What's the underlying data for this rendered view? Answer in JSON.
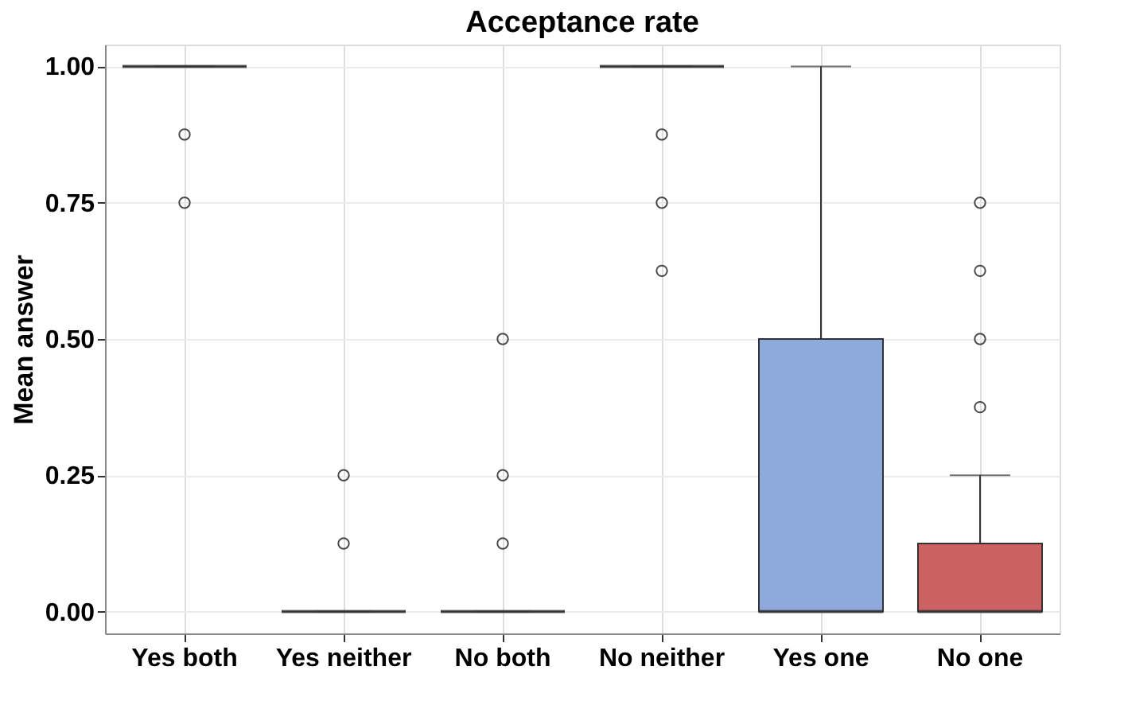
{
  "chart_data": {
    "type": "box",
    "title": "Acceptance rate",
    "ylabel": "Mean answer",
    "categories": [
      "Yes both",
      "Yes neither",
      "No both",
      "No neither",
      "Yes one",
      "No one"
    ],
    "boxes": [
      {
        "low": 1,
        "q1": 1,
        "median": 1,
        "q3": 1,
        "high": 1,
        "outliers": [
          0.875,
          0.75
        ]
      },
      {
        "low": 0,
        "q1": 0,
        "median": 0,
        "q3": 0,
        "high": 0,
        "outliers": [
          0.25,
          0.125
        ]
      },
      {
        "low": 0,
        "q1": 0,
        "median": 0,
        "q3": 0,
        "high": 0,
        "outliers": [
          0.5,
          0.25,
          0.125
        ]
      },
      {
        "low": 1,
        "q1": 1,
        "median": 1,
        "q3": 1,
        "high": 1,
        "outliers": [
          0.875,
          0.75,
          0.625
        ]
      },
      {
        "low": 0,
        "q1": 0,
        "median": 0,
        "q3": 0.5,
        "high": 1
      },
      {
        "low": 0,
        "q1": 0,
        "median": 0,
        "q3": 0.125,
        "high": 0.25,
        "outliers": [
          0.75,
          0.625,
          0.5,
          0.375
        ]
      }
    ],
    "colors": [
      "#333333",
      "#333333",
      "#333333",
      "#333333",
      "#8eaadc",
      "#cd6262"
    ],
    "ylim": [
      -0.04,
      1.04
    ],
    "yticks": [
      {
        "value": 0,
        "label": "0.00"
      },
      {
        "value": 0.25,
        "label": "0.25"
      },
      {
        "value": 0.5,
        "label": "0.50"
      },
      {
        "value": 0.75,
        "label": "0.75"
      },
      {
        "value": 1,
        "label": "1.00"
      }
    ],
    "grid": true
  }
}
